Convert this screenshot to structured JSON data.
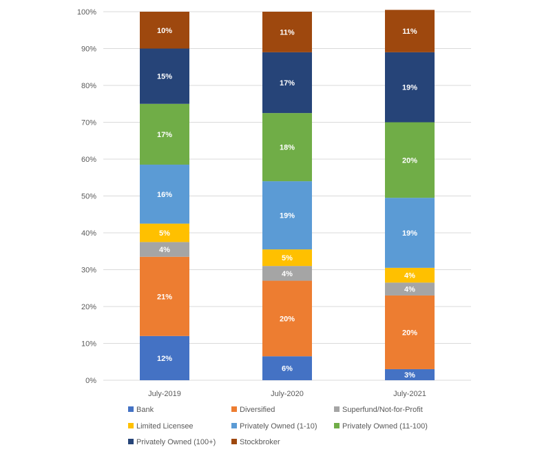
{
  "chart_data": {
    "type": "bar",
    "stacked": true,
    "percent_stacked": true,
    "categories": [
      "July-2019",
      "July-2020",
      "July-2021"
    ],
    "ylim": [
      0,
      100
    ],
    "yticks": [
      "0%",
      "10%",
      "20%",
      "30%",
      "40%",
      "50%",
      "60%",
      "70%",
      "80%",
      "90%",
      "100%"
    ],
    "grid": true,
    "legend_position": "bottom",
    "series": [
      {
        "name": "Bank",
        "color": "#4472C4",
        "values": [
          12,
          6.5,
          3
        ],
        "labels": [
          "12%",
          "6%",
          "3%"
        ]
      },
      {
        "name": "Diversified",
        "color": "#ED7D31",
        "values": [
          21.5,
          20.5,
          20
        ],
        "labels": [
          "21%",
          "20%",
          "20%"
        ]
      },
      {
        "name": "Superfund/Not-for-Profit",
        "color": "#A5A5A5",
        "values": [
          4,
          4,
          3.5
        ],
        "labels": [
          "4%",
          "4%",
          "4%"
        ]
      },
      {
        "name": "Limited Licensee",
        "color": "#FFC000",
        "values": [
          5,
          4.5,
          4
        ],
        "labels": [
          "5%",
          "5%",
          "4%"
        ]
      },
      {
        "name": "Privately Owned (1-10)",
        "color": "#5B9BD5",
        "values": [
          16,
          18.5,
          19
        ],
        "labels": [
          "16%",
          "19%",
          "19%"
        ]
      },
      {
        "name": "Privately Owned (11-100)",
        "color": "#70AD47",
        "values": [
          16.5,
          18.5,
          20.5
        ],
        "labels": [
          "17%",
          "18%",
          "20%"
        ]
      },
      {
        "name": "Privately Owned (100+)",
        "color": "#264478",
        "values": [
          15,
          16.5,
          19
        ],
        "labels": [
          "15%",
          "17%",
          "19%"
        ]
      },
      {
        "name": "Stockbroker",
        "color": "#9E480E",
        "values": [
          10,
          11,
          11.5
        ],
        "labels": [
          "10%",
          "11%",
          "11%"
        ]
      }
    ]
  }
}
